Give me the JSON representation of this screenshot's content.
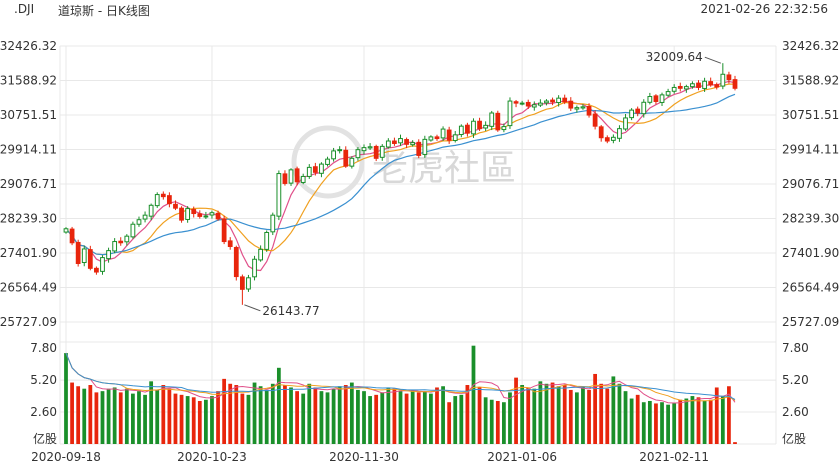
{
  "header": {
    "symbol": ".DJI",
    "title": "道琼斯 - 日K线图",
    "datetime": "2021-02-26 22:32:56"
  },
  "watermark": "老虎社區",
  "colors": {
    "up": "#1a8f2a",
    "down": "#e8250c",
    "ma5": "#e0508a",
    "ma10": "#f0a020",
    "ma20": "#3a90d0",
    "grid": "#e8e8e8"
  },
  "chart_data": {
    "type": "candlestick",
    "price_axis": {
      "min": 25727.09,
      "max": 32426.32,
      "ticks": [
        "32426.32",
        "31588.92",
        "30751.51",
        "29914.11",
        "29076.71",
        "28239.30",
        "27401.90",
        "26564.49",
        "25727.09"
      ]
    },
    "volume_axis": {
      "min": 0,
      "max": 7.8,
      "ticks": [
        "7.80",
        "5.20",
        "2.60"
      ],
      "unit": "亿股"
    },
    "x_labels": [
      "2020-09-18",
      "2020-10-23",
      "2020-11-30",
      "2021-01-06",
      "2021-02-11"
    ],
    "annotations": [
      {
        "text": "32009.64",
        "value": 32009.64,
        "bar_index": 108
      },
      {
        "text": "26143.77",
        "value": 26143.77,
        "bar_index": 29
      }
    ],
    "close": [
      27990,
      27650,
      27147,
      27500,
      27030,
      26940,
      27290,
      27460,
      27680,
      27650,
      27810,
      28100,
      28210,
      28320,
      28560,
      28820,
      28770,
      28600,
      28490,
      28200,
      28480,
      28360,
      28290,
      28300,
      28380,
      28230,
      27680,
      27560,
      26830,
      26520,
      26800,
      27250,
      27490,
      27900,
      28320,
      29330,
      29090,
      29420,
      29130,
      29260,
      29480,
      29360,
      29560,
      29680,
      29880,
      29910,
      29510,
      29700,
      29910,
      29960,
      29980,
      29700,
      29990,
      30120,
      30060,
      30180,
      30040,
      30080,
      29770,
      30160,
      30220,
      30180,
      30410,
      30140,
      30270,
      30480,
      30310,
      30600,
      30420,
      30500,
      30800,
      30390,
      30470,
      31090,
      31040,
      31040,
      30970,
      31000,
      31040,
      31090,
      31070,
      31160,
      31070,
      30920,
      30930,
      30950,
      30750,
      30480,
      30200,
      30120,
      30210,
      30420,
      30680,
      30870,
      30800,
      31060,
      31200,
      31080,
      31240,
      31320,
      31420,
      31400,
      31440,
      31510,
      31420,
      31570,
      31480,
      31430,
      31740,
      31610,
      31400
    ],
    "volume": [
      7.4,
      5.0,
      4.7,
      4.5,
      4.8,
      4.2,
      4.3,
      4.5,
      4.6,
      4.2,
      4.5,
      4.1,
      4.3,
      4.0,
      5.1,
      4.4,
      4.8,
      4.5,
      4.1,
      4.0,
      3.9,
      3.8,
      3.5,
      3.6,
      3.9,
      4.3,
      5.3,
      4.9,
      4.8,
      4.1,
      4.0,
      5.0,
      4.7,
      4.4,
      4.9,
      6.2,
      4.8,
      4.6,
      4.3,
      4.1,
      4.9,
      4.6,
      4.3,
      4.2,
      4.5,
      4.7,
      4.8,
      5.0,
      4.4,
      4.3,
      3.9,
      4.0,
      4.2,
      4.6,
      4.5,
      4.3,
      4.1,
      4.4,
      4.2,
      4.3,
      4.1,
      4.6,
      4.7,
      3.4,
      3.9,
      4.0,
      4.8,
      8.0,
      4.6,
      3.8,
      3.6,
      3.5,
      3.4,
      4.2,
      5.4,
      4.8,
      4.6,
      4.5,
      5.1,
      4.9,
      5.0,
      4.7,
      4.8,
      4.4,
      4.2,
      4.6,
      4.4,
      5.7,
      4.9,
      4.5,
      5.5,
      4.9,
      4.3,
      3.7,
      4.0,
      3.4,
      3.5,
      3.3,
      3.4,
      3.2,
      3.3,
      3.6,
      3.7,
      3.9,
      3.8,
      3.5,
      3.6,
      4.6,
      3.9,
      4.7,
      0.15
    ]
  }
}
